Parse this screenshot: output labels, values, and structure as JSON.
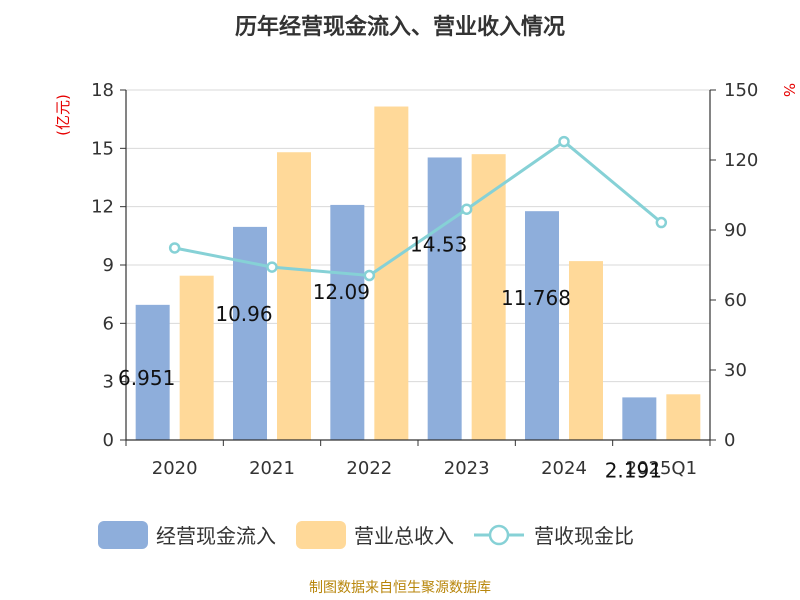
{
  "chart_data": {
    "type": "bar",
    "title": "历年经营现金流入、营业收入情况",
    "categories": [
      "2020",
      "2021",
      "2022",
      "2023",
      "2024",
      "2025Q1"
    ],
    "left_axis": {
      "unit_label": "(亿元)",
      "ylim": [
        0,
        18
      ],
      "ticks": [
        "0",
        "3",
        "6",
        "9",
        "12",
        "15",
        "18"
      ]
    },
    "right_axis": {
      "unit_label": "%",
      "ylim": [
        0,
        150
      ],
      "ticks": [
        "0",
        "30",
        "60",
        "90",
        "120",
        "150"
      ]
    },
    "series": [
      {
        "name": "经营现金流入",
        "kind": "bar",
        "axis": "left",
        "color": "#8eaedb",
        "values": [
          6.951,
          10.96,
          12.09,
          14.53,
          11.768,
          2.191
        ],
        "labels": [
          "6.951",
          "10.96",
          "12.09",
          "14.53",
          "11.768",
          "2.191"
        ]
      },
      {
        "name": "营业总收入",
        "kind": "bar",
        "axis": "left",
        "color": "#ffd999",
        "values": [
          8.45,
          14.8,
          17.15,
          14.7,
          9.2,
          2.35
        ]
      },
      {
        "name": "营收现金比",
        "kind": "line",
        "axis": "right",
        "color": "#86d1d6",
        "values": [
          82.3,
          74.1,
          70.5,
          98.9,
          127.9,
          93.2
        ]
      }
    ],
    "grid": true,
    "legend_position": "bottom"
  },
  "source_text": "制图数据来自恒生聚源数据库"
}
